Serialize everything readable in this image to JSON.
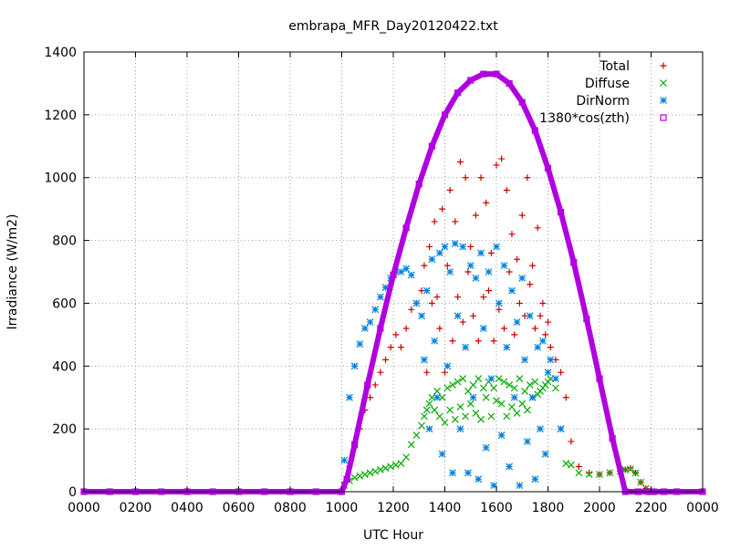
{
  "chart_data": {
    "type": "scatter",
    "title": "embrapa_MFR_Day20120422.txt",
    "xlabel": "UTC Hour",
    "ylabel": "Irradiance (W/m2)",
    "xlim": [
      0,
      24
    ],
    "ylim": [
      0,
      1400
    ],
    "x_ticks": [
      {
        "value": 0,
        "label": "0000"
      },
      {
        "value": 2,
        "label": "0200"
      },
      {
        "value": 4,
        "label": "0400"
      },
      {
        "value": 6,
        "label": "0600"
      },
      {
        "value": 8,
        "label": "0800"
      },
      {
        "value": 10,
        "label": "1000"
      },
      {
        "value": 12,
        "label": "1200"
      },
      {
        "value": 14,
        "label": "1400"
      },
      {
        "value": 16,
        "label": "1600"
      },
      {
        "value": 18,
        "label": "1800"
      },
      {
        "value": 20,
        "label": "2000"
      },
      {
        "value": 22,
        "label": "2200"
      },
      {
        "value": 24,
        "label": "0000"
      }
    ],
    "y_ticks": [
      {
        "value": 0,
        "label": "0"
      },
      {
        "value": 200,
        "label": "200"
      },
      {
        "value": 400,
        "label": "400"
      },
      {
        "value": 600,
        "label": "600"
      },
      {
        "value": 800,
        "label": "800"
      },
      {
        "value": 1000,
        "label": "1000"
      },
      {
        "value": 1200,
        "label": "1200"
      },
      {
        "value": 1400,
        "label": "1400"
      }
    ],
    "grid": true,
    "legend_position": "top-right",
    "series": [
      {
        "name": "Total",
        "marker": "plus",
        "color": "#cc0000",
        "x": [
          10.1,
          10.3,
          10.5,
          10.7,
          10.9,
          11.1,
          11.3,
          11.5,
          11.7,
          11.9,
          12.1,
          12.3,
          12.5,
          12.7,
          12.9,
          13.1,
          13.2,
          13.3,
          13.4,
          13.5,
          13.6,
          13.7,
          13.8,
          13.9,
          14.0,
          14.1,
          14.2,
          14.3,
          14.4,
          14.5,
          14.6,
          14.7,
          14.8,
          14.9,
          15.0,
          15.1,
          15.2,
          15.3,
          15.4,
          15.5,
          15.6,
          15.7,
          15.8,
          15.9,
          16.0,
          16.1,
          16.2,
          16.3,
          16.4,
          16.5,
          16.6,
          16.7,
          16.8,
          16.9,
          17.0,
          17.1,
          17.2,
          17.3,
          17.4,
          17.5,
          17.6,
          17.7,
          17.8,
          17.9,
          18.0,
          18.1,
          18.3,
          18.5,
          18.7,
          18.9,
          19.2,
          19.6,
          20.0,
          20.4,
          20.8,
          21.0,
          21.2,
          21.4,
          21.6,
          21.8,
          22.0
        ],
        "values": [
          30,
          80,
          140,
          200,
          260,
          300,
          340,
          380,
          420,
          460,
          500,
          460,
          520,
          580,
          600,
          640,
          720,
          380,
          780,
          600,
          860,
          620,
          520,
          900,
          380,
          720,
          960,
          480,
          860,
          620,
          1050,
          540,
          1000,
          700,
          780,
          560,
          880,
          480,
          1000,
          620,
          920,
          640,
          760,
          480,
          1040,
          580,
          1060,
          520,
          960,
          700,
          820,
          500,
          740,
          600,
          880,
          560,
          1000,
          660,
          720,
          520,
          840,
          560,
          600,
          500,
          540,
          460,
          420,
          380,
          300,
          160,
          80,
          60,
          55,
          60,
          65,
          70,
          75,
          60,
          30,
          10,
          0
        ]
      },
      {
        "name": "Diffuse",
        "marker": "cross",
        "color": "#00aa00",
        "x": [
          10.1,
          10.3,
          10.5,
          10.7,
          10.9,
          11.1,
          11.3,
          11.5,
          11.7,
          11.9,
          12.1,
          12.3,
          12.5,
          12.7,
          12.9,
          13.1,
          13.2,
          13.3,
          13.4,
          13.5,
          13.6,
          13.7,
          13.8,
          13.9,
          14.0,
          14.1,
          14.2,
          14.3,
          14.4,
          14.5,
          14.6,
          14.7,
          14.8,
          14.9,
          15.0,
          15.1,
          15.2,
          15.3,
          15.4,
          15.5,
          15.6,
          15.7,
          15.8,
          15.9,
          16.0,
          16.1,
          16.2,
          16.3,
          16.4,
          16.5,
          16.6,
          16.7,
          16.8,
          16.9,
          17.0,
          17.1,
          17.2,
          17.3,
          17.4,
          17.5,
          17.6,
          17.7,
          17.8,
          17.9,
          18.0,
          18.1,
          18.3,
          18.5,
          18.7,
          18.9,
          19.2,
          19.6,
          20.0,
          20.4,
          20.8,
          21.0,
          21.2,
          21.4,
          21.6,
          21.8,
          22.0
        ],
        "values": [
          20,
          35,
          45,
          50,
          55,
          60,
          65,
          70,
          75,
          80,
          85,
          90,
          110,
          150,
          180,
          210,
          240,
          260,
          280,
          300,
          260,
          320,
          240,
          300,
          220,
          330,
          260,
          340,
          230,
          350,
          270,
          360,
          240,
          320,
          280,
          340,
          250,
          360,
          230,
          330,
          300,
          350,
          240,
          330,
          290,
          360,
          280,
          350,
          240,
          340,
          270,
          330,
          250,
          360,
          280,
          320,
          260,
          340,
          300,
          350,
          310,
          320,
          330,
          340,
          350,
          360,
          330,
          200,
          90,
          85,
          60,
          55,
          55,
          60,
          65,
          70,
          72,
          60,
          30,
          10,
          0
        ]
      },
      {
        "name": "DirNorm",
        "marker": "star",
        "color": "#0080e0",
        "x": [
          10.1,
          10.3,
          10.5,
          10.7,
          10.9,
          11.1,
          11.3,
          11.5,
          11.7,
          11.9,
          12.1,
          12.3,
          12.5,
          12.7,
          12.9,
          13.1,
          13.2,
          13.3,
          13.4,
          13.5,
          13.6,
          13.7,
          13.8,
          13.9,
          14.0,
          14.1,
          14.2,
          14.3,
          14.4,
          14.5,
          14.6,
          14.7,
          14.8,
          14.9,
          15.0,
          15.1,
          15.2,
          15.3,
          15.4,
          15.5,
          15.6,
          15.7,
          15.8,
          15.9,
          16.0,
          16.1,
          16.2,
          16.3,
          16.4,
          16.5,
          16.6,
          16.7,
          16.8,
          16.9,
          17.0,
          17.1,
          17.2,
          17.3,
          17.4,
          17.5,
          17.6,
          17.7,
          17.8,
          17.9,
          18.0,
          18.1,
          18.3,
          18.5
        ],
        "values": [
          100,
          300,
          400,
          470,
          520,
          540,
          580,
          620,
          650,
          680,
          700,
          700,
          710,
          690,
          600,
          560,
          420,
          640,
          200,
          740,
          480,
          300,
          760,
          120,
          780,
          400,
          700,
          60,
          790,
          560,
          200,
          780,
          460,
          60,
          720,
          300,
          680,
          40,
          760,
          520,
          140,
          700,
          360,
          20,
          780,
          600,
          180,
          720,
          460,
          80,
          640,
          300,
          540,
          20,
          680,
          420,
          160,
          560,
          300,
          40,
          460,
          200,
          480,
          120,
          380,
          420,
          360,
          200
        ]
      },
      {
        "name": "1380*cos(zth)",
        "marker": "square",
        "color": "#b000e0",
        "x": [
          0,
          1,
          2,
          3,
          4,
          5,
          6,
          7,
          8,
          9,
          10,
          10.2,
          10.5,
          11,
          11.5,
          12,
          12.5,
          13,
          13.5,
          14,
          14.5,
          15,
          15.5,
          16,
          16.5,
          17,
          17.5,
          18,
          18.5,
          19,
          19.5,
          20,
          20.5,
          21,
          21.5,
          21.9,
          22.1,
          22.5,
          23,
          24
        ],
        "values": [
          0,
          0,
          0,
          0,
          0,
          0,
          0,
          0,
          0,
          0,
          0,
          40,
          150,
          340,
          520,
          690,
          840,
          980,
          1100,
          1200,
          1270,
          1310,
          1330,
          1330,
          1300,
          1240,
          1150,
          1030,
          890,
          730,
          550,
          360,
          170,
          0,
          0,
          0,
          0,
          0,
          0,
          0
        ]
      }
    ]
  }
}
